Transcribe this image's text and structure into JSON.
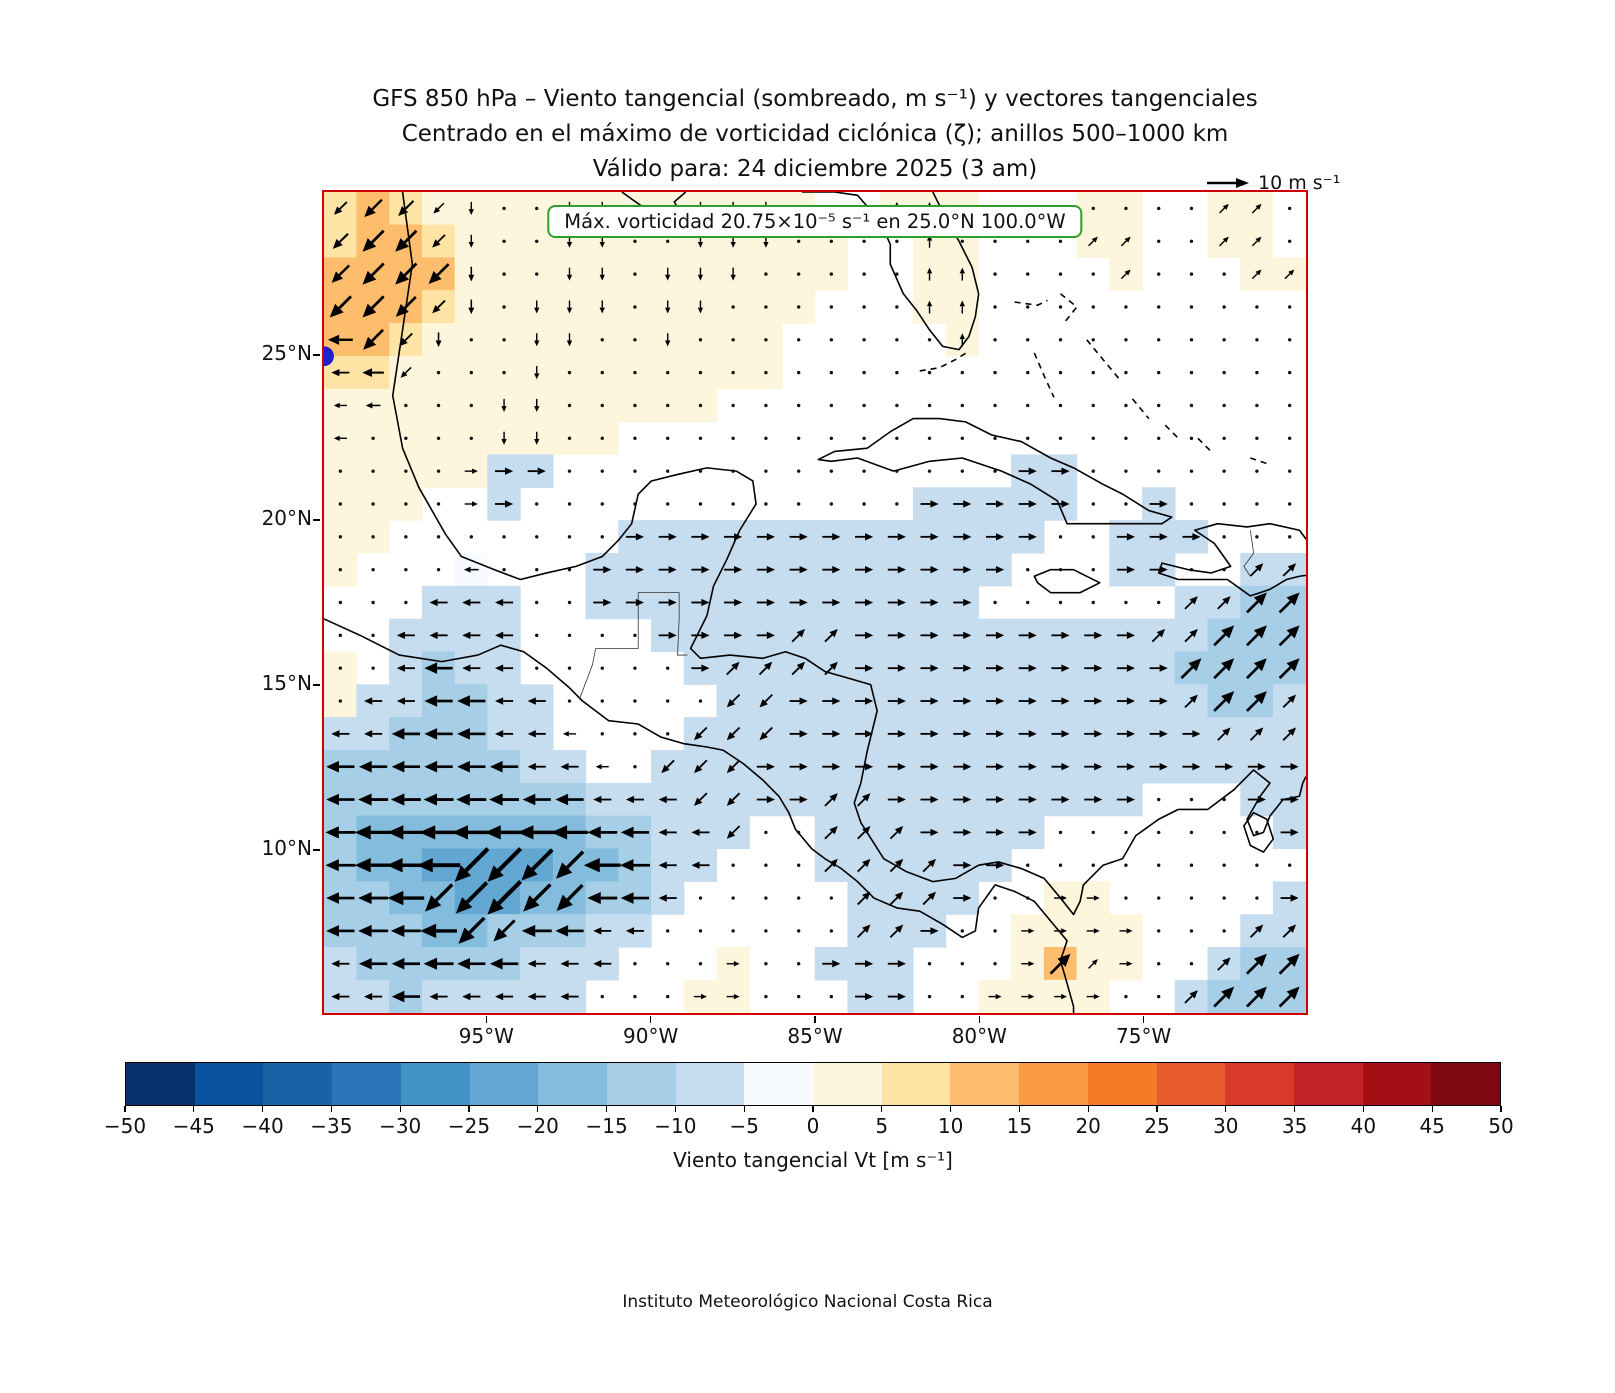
{
  "title": {
    "line1": "GFS 850 hPa – Viento tangencial (sombreado, m s⁻¹) y vectores tangenciales",
    "line2": "Centrado en el máximo de vorticidad ciclónica (ζ); anillos 500–1000 km",
    "line3": "Válido para: 24 diciembre 2025 (3 am)"
  },
  "annotation": {
    "text": "Máx. vorticidad 20.75×10⁻⁵ s⁻¹ en 25.0°N 100.0°W"
  },
  "quiver_key": {
    "label": "10 m s⁻¹"
  },
  "footer": "Instituto Meteorológico Nacional Costa Rica",
  "axes": {
    "x_tick_labels": [
      "95°W",
      "90°W",
      "85°W",
      "80°W",
      "75°W"
    ],
    "x_tick_lons": [
      -95,
      -90,
      -85,
      -80,
      -75
    ],
    "y_tick_labels": [
      "25°N",
      "20°N",
      "15°N",
      "10°N"
    ],
    "y_tick_lats": [
      25,
      20,
      15,
      10
    ]
  },
  "colorbar": {
    "label": "Viento tangencial Vt [m s⁻¹]",
    "tick_labels": [
      "−50",
      "−45",
      "−40",
      "−35",
      "−30",
      "−25",
      "−20",
      "−15",
      "−10",
      "−5",
      "0",
      "5",
      "10",
      "15",
      "20",
      "25",
      "30",
      "35",
      "40",
      "45",
      "50"
    ],
    "tick_values": [
      -50,
      -45,
      -40,
      -35,
      -30,
      -25,
      -20,
      -15,
      -10,
      -5,
      0,
      5,
      10,
      15,
      20,
      25,
      30,
      35,
      40,
      45,
      50
    ],
    "colors": [
      "#08306b",
      "#08519c",
      "#1a62a5",
      "#2b76b9",
      "#4292c6",
      "#61a7d2",
      "#83bcdd",
      "#a6cee6",
      "#c6dcef",
      "#f7fbff",
      "#fdf5dc",
      "#fde3a4",
      "#fdbd6d",
      "#fd9b44",
      "#f57b24",
      "#e85b2b",
      "#d93a2b",
      "#c22127",
      "#a30f15",
      "#7f0711"
    ]
  },
  "colors": {
    "map_border": "#d10000",
    "annotation_border": "#2ca02c",
    "center_dot": "#2222cc",
    "coastline": "#000000"
  },
  "chart_data": {
    "type": "heatmap",
    "title": "GFS 850 hPa – Viento tangencial (sombreado, m s⁻¹) y vectores tangenciales",
    "subtitle": "Centrado en el máximo de vorticidad ciclónica (ζ); anillos 500–1000 km",
    "valid_time": "24 diciembre 2025 (3 am)",
    "units": "m s⁻¹",
    "lon_range": [
      -100,
      -70
    ],
    "lat_range": [
      5,
      30
    ],
    "levels": [
      -50,
      -45,
      -40,
      -35,
      -30,
      -25,
      -20,
      -15,
      -10,
      -5,
      0,
      5,
      10,
      15,
      20,
      25,
      30,
      35,
      40,
      45,
      50
    ],
    "quiver_reference_ms": 10,
    "center_max_vorticity": {
      "lat": 25.0,
      "lon": -100.0,
      "value": "20.75×10⁻⁵ s⁻¹"
    },
    "grid": {
      "lon0": -99.5,
      "dlon": 1,
      "lat0": 29.5,
      "dlat": -1,
      "ncols": 30,
      "nrows": 25,
      "vt": [
        [
          6,
          10,
          8,
          4,
          3,
          3,
          3,
          3,
          3,
          3,
          3,
          3,
          3,
          3,
          2,
          0,
          0,
          3,
          3,
          2,
          0,
          0,
          0,
          2,
          2,
          0,
          0,
          2,
          2,
          0
        ],
        [
          8,
          13,
          13,
          6,
          3,
          3,
          3,
          3,
          3,
          3,
          3,
          3,
          3,
          3,
          2,
          2,
          0,
          0,
          3,
          2,
          0,
          0,
          0,
          2,
          2,
          0,
          0,
          2,
          2,
          0
        ],
        [
          10,
          13,
          13,
          12,
          4,
          3,
          3,
          3,
          3,
          3,
          3,
          3,
          3,
          2,
          2,
          2,
          0,
          0,
          3,
          3,
          0,
          0,
          0,
          0,
          2,
          0,
          0,
          0,
          2,
          2
        ],
        [
          13,
          13,
          12,
          6,
          4,
          3,
          3,
          3,
          3,
          3,
          3,
          3,
          2,
          2,
          2,
          0,
          0,
          0,
          2,
          3,
          0,
          0,
          0,
          0,
          0,
          0,
          0,
          0,
          0,
          0
        ],
        [
          10,
          12,
          6,
          4,
          3,
          3,
          3,
          3,
          3,
          3,
          2,
          2,
          2,
          2,
          0,
          0,
          0,
          0,
          0,
          2,
          0,
          0,
          0,
          0,
          0,
          0,
          0,
          0,
          0,
          0
        ],
        [
          6,
          8,
          4,
          3,
          3,
          3,
          3,
          3,
          3,
          2,
          2,
          2,
          2,
          2,
          0,
          0,
          0,
          0,
          0,
          0,
          0,
          0,
          0,
          0,
          0,
          0,
          0,
          0,
          0,
          0
        ],
        [
          3,
          4,
          3,
          3,
          3,
          3,
          3,
          3,
          2,
          2,
          2,
          2,
          0,
          0,
          0,
          0,
          0,
          0,
          0,
          0,
          0,
          0,
          0,
          0,
          0,
          0,
          0,
          0,
          0,
          0
        ],
        [
          3,
          3,
          3,
          3,
          3,
          3,
          3,
          2,
          2,
          0,
          0,
          0,
          0,
          0,
          0,
          0,
          0,
          0,
          0,
          0,
          0,
          0,
          0,
          0,
          0,
          0,
          0,
          0,
          0,
          0
        ],
        [
          3,
          3,
          3,
          3,
          3,
          -6,
          -6,
          0,
          0,
          0,
          0,
          0,
          0,
          0,
          0,
          0,
          0,
          0,
          0,
          0,
          0,
          -6,
          -6,
          0,
          0,
          0,
          0,
          0,
          0,
          0
        ],
        [
          3,
          3,
          3,
          0,
          0,
          -6,
          0,
          0,
          0,
          0,
          0,
          0,
          0,
          0,
          0,
          0,
          0,
          0,
          -6,
          -6,
          -6,
          -6,
          -6,
          0,
          0,
          -6,
          0,
          0,
          0,
          0
        ],
        [
          3,
          3,
          0,
          0,
          0,
          0,
          0,
          0,
          0,
          -6,
          -6,
          -6,
          -6,
          -6,
          -6,
          -6,
          -6,
          -6,
          -6,
          -6,
          -6,
          -6,
          0,
          0,
          -6,
          -6,
          -6,
          0,
          0,
          0
        ],
        [
          3,
          0,
          0,
          0,
          -4,
          0,
          0,
          0,
          -6,
          -6,
          -6,
          -6,
          -6,
          -6,
          -6,
          -6,
          -6,
          -6,
          -6,
          -6,
          -6,
          0,
          0,
          0,
          -6,
          -6,
          0,
          0,
          -6,
          -6
        ],
        [
          0,
          0,
          0,
          -6,
          -6,
          -6,
          0,
          0,
          -6,
          -6,
          -6,
          -6,
          -6,
          -6,
          -6,
          -6,
          -6,
          -6,
          -6,
          -6,
          0,
          0,
          0,
          0,
          0,
          0,
          -6,
          -6,
          -12,
          -12
        ],
        [
          0,
          0,
          -6,
          -6,
          -6,
          -6,
          0,
          0,
          0,
          0,
          -6,
          -6,
          -6,
          -6,
          -6,
          -6,
          -6,
          -6,
          -6,
          -6,
          -6,
          -6,
          -6,
          -6,
          -6,
          -6,
          -6,
          -12,
          -12,
          -12
        ],
        [
          3,
          0,
          -6,
          -12,
          -6,
          -6,
          0,
          0,
          0,
          0,
          0,
          -6,
          -6,
          -6,
          -6,
          -6,
          -6,
          -6,
          -6,
          -6,
          -6,
          -6,
          -6,
          -6,
          -6,
          -6,
          -12,
          -12,
          -12,
          -12
        ],
        [
          3,
          -6,
          -6,
          -12,
          -12,
          -6,
          -6,
          0,
          0,
          0,
          0,
          0,
          -6,
          -6,
          -6,
          -6,
          -6,
          -6,
          -6,
          -6,
          -6,
          -6,
          -6,
          -6,
          -6,
          -6,
          -6,
          -12,
          -12,
          -6
        ],
        [
          -6,
          -6,
          -12,
          -12,
          -12,
          -6,
          -6,
          0,
          0,
          0,
          0,
          -6,
          -6,
          -6,
          -6,
          -6,
          -6,
          -6,
          -6,
          -6,
          -6,
          -6,
          -6,
          -6,
          -6,
          -6,
          -6,
          -6,
          -6,
          -6
        ],
        [
          -12,
          -12,
          -12,
          -12,
          -12,
          -12,
          -6,
          -6,
          0,
          0,
          -6,
          -6,
          -6,
          -6,
          -6,
          -6,
          -6,
          -6,
          -6,
          -6,
          -6,
          -6,
          -6,
          -6,
          -6,
          -6,
          -6,
          -6,
          -6,
          -6
        ],
        [
          -12,
          -13,
          -13,
          -13,
          -13,
          -13,
          -12,
          -12,
          -6,
          -6,
          -6,
          -6,
          -6,
          -6,
          -6,
          -6,
          -6,
          -6,
          -6,
          -6,
          -6,
          -6,
          -6,
          -6,
          -6,
          0,
          0,
          0,
          -6,
          -6
        ],
        [
          -13,
          -17,
          -17,
          -18,
          -18,
          -18,
          -18,
          -17,
          -13,
          -12,
          -6,
          -6,
          -6,
          0,
          0,
          -6,
          -6,
          -6,
          -6,
          -6,
          -6,
          -6,
          0,
          0,
          0,
          0,
          0,
          0,
          0,
          -6
        ],
        [
          -13,
          -17,
          -18,
          -21,
          -23,
          -23,
          -21,
          -18,
          -17,
          -13,
          -6,
          -6,
          0,
          0,
          0,
          -6,
          -6,
          -6,
          -6,
          -6,
          -6,
          0,
          0,
          0,
          0,
          0,
          0,
          0,
          0,
          0
        ],
        [
          -12,
          -13,
          -17,
          -18,
          -21,
          -23,
          -18,
          -17,
          -13,
          -12,
          -6,
          0,
          0,
          0,
          0,
          0,
          -6,
          -6,
          -6,
          -6,
          0,
          0,
          3,
          3,
          0,
          0,
          0,
          0,
          0,
          -6
        ],
        [
          -12,
          -13,
          -13,
          -17,
          -17,
          -13,
          -13,
          -12,
          -6,
          -6,
          0,
          0,
          0,
          0,
          0,
          0,
          -6,
          -6,
          -6,
          0,
          0,
          3,
          3,
          3,
          3,
          0,
          0,
          0,
          -6,
          -6
        ],
        [
          -6,
          -12,
          -12,
          -13,
          -12,
          -12,
          -6,
          -6,
          -6,
          0,
          0,
          0,
          3,
          0,
          0,
          -6,
          -6,
          -6,
          0,
          0,
          0,
          3,
          12,
          3,
          3,
          0,
          0,
          -6,
          -12,
          -12
        ],
        [
          -6,
          -6,
          -12,
          -6,
          -6,
          -6,
          -6,
          -6,
          0,
          0,
          0,
          3,
          3,
          0,
          0,
          0,
          -6,
          -6,
          0,
          0,
          3,
          3,
          3,
          3,
          0,
          0,
          -6,
          -12,
          -12,
          -12
        ]
      ],
      "dir": [
        "SW SW SW SW S . . S S . . S S S . . . N N . . . . . . . . NE NE .",
        "SW SW SW SW S . . S S . . S S S . . . . N . . . . NE NE . . NE NE .",
        "SW SW SW SW S . . S S . S S S . . . . . N N . . . . NE . . . NE NE",
        "SW SW SW SW S . S S S . S S . . . . . . N N . . . . . . . . . .",
        "W SW SW S . . S S . . S . . . . . . . . N . . . . . . . . . .",
        "W W SW . . . S . . . . . . . . . . . . . . . . . . . . . . .",
        "W W . . . S S . . . . . . . . . . . . . . . . . . . . . . .",
        "W . . . . S S . . . . . . . . . . . . . . . . . . . . . . .",
        ". . . . E E E . . . . . . . . . . . . . . E E . . . . . . .",
        ". . . . E E . . . . . . . . . . . . E E E E E . . E . . . .",
        ". . . . . . . . . E E E E E E E E E E E E E . . E E E . . .",
        ". . . . W . . . E E E E E E E E E E E E E . . . E E . . NE NE",
        ". . . W W W . . E E E E E E E E E E E E . . . . . . NE NE NE NE",
        ". . W W W W . . . . E E E E NE NE E E E E E E E E E NE NE NE NE NE",
        ". . W W W W . . . . . E NE NE NE NE E E E E E E E E E E NE NE NE NE",
        ". W W W W W W . . . . . SW SW E E E E E E E E E E E E NE NE NE NE",
        "W W W W W W W W . . . SW SW SW E E E E E E E E E E E E E NE NE NE",
        "W W W W W W W W W . SW SW SW E E E E E E E E E E E E E E E E E",
        "W W W W W W W W W W W SW SW E E NE NE E E E E E E E E . . . E E",
        "W W W W W W W W W W W W SW . . NE NE NE E E E E . . . . . . . E",
        "W W W W SW SW SW SW W W W W . . . NE NE NE NE E E . . . . . . . . .",
        "W W W SW SW SW SW SW W W W . . . . . NE NE NE E . . E E . . . . . E",
        "W W W W SW SW W W W W . . . . . . NE NE E . . E E E E . . . NE NE",
        "W W W W W W W W W . . . E . . E E E . . . E NE NE E . . NE NE NE",
        "W W W W W W W W . . . E E . . . E E . . E E E E . . NE NE NE NE"
      ]
    }
  }
}
